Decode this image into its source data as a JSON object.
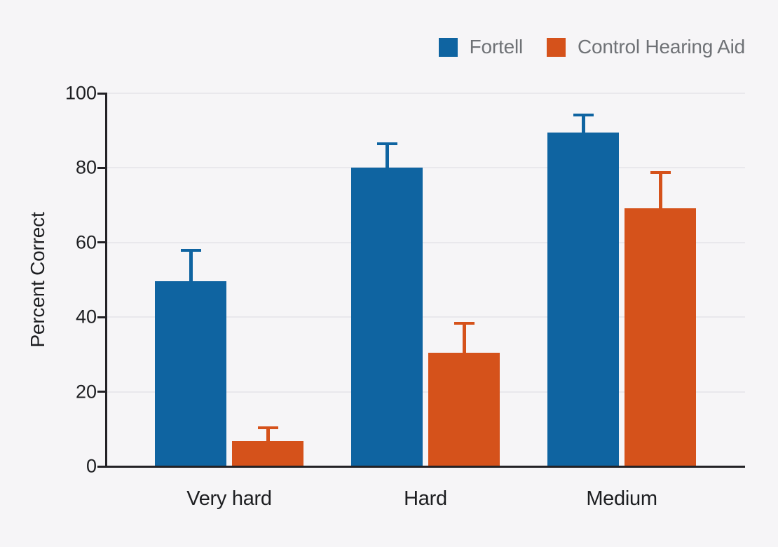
{
  "colors": {
    "background": "#f6f5f7",
    "gridline": "#e9e8ec",
    "axis": "#232226",
    "axis_text": "#1d1e21",
    "legend_text": "#6f7276",
    "fortell_blue": "#0f64a1",
    "control_orange": "#d5521b"
  },
  "chart_data": {
    "type": "bar",
    "title": "",
    "xlabel": "",
    "ylabel": "Percent Correct",
    "ylim": [
      0,
      100
    ],
    "yticks": [
      0,
      20,
      40,
      60,
      80,
      100
    ],
    "grid": "horizontal gridlines at each y tick, light gray, behind bars",
    "legend_position": "top-right",
    "categories": [
      "Very hard",
      "Hard",
      "Medium"
    ],
    "series": [
      {
        "name": "Fortell",
        "color": "#0f64a1",
        "values": [
          49.7,
          80,
          89.5
        ],
        "error_plus": [
          8.1,
          6.3,
          4.5
        ]
      },
      {
        "name": "Control Hearing Aid",
        "color": "#d5521b",
        "values": [
          6.7,
          30.5,
          69.2
        ],
        "error_plus": [
          3.5,
          7.7,
          9.4
        ]
      }
    ]
  }
}
